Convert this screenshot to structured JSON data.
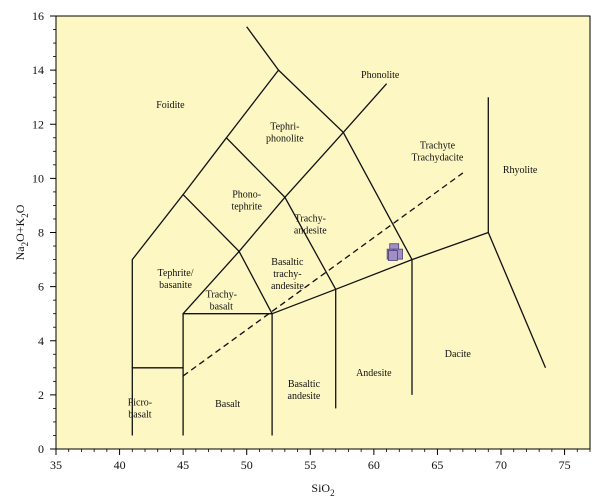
{
  "chart_data": {
    "type": "scatter",
    "title": "",
    "xlabel": "SiO",
    "xlabel_sub": "2",
    "ylabel_parts": [
      {
        "t": "Na",
        "sub": false
      },
      {
        "t": "2",
        "sub": true
      },
      {
        "t": "O+K",
        "sub": false
      },
      {
        "t": "2",
        "sub": true
      },
      {
        "t": "O",
        "sub": false
      }
    ],
    "xlim": [
      35,
      77
    ],
    "ylim": [
      0,
      16
    ],
    "xticks": [
      "35",
      "40",
      "45",
      "50",
      "55",
      "60",
      "65",
      "70",
      "75"
    ],
    "yticks": [
      "0",
      "2",
      "4",
      "6",
      "8",
      "10",
      "12",
      "14",
      "16"
    ],
    "grid": false,
    "background": "#fdf7c3",
    "line_color": "#111111",
    "marker_color": "#9f8fc4",
    "boundaries": [
      [
        [
          41,
          0.5
        ],
        [
          41,
          3
        ],
        [
          45,
          3
        ]
      ],
      [
        [
          45,
          0.5
        ],
        [
          45,
          5
        ],
        [
          52,
          5
        ],
        [
          52,
          0.5
        ]
      ],
      [
        [
          52,
          5
        ],
        [
          57,
          5.9
        ],
        [
          63,
          7
        ],
        [
          69,
          8
        ]
      ],
      [
        [
          57,
          1.5
        ],
        [
          57,
          5.9
        ]
      ],
      [
        [
          63,
          2
        ],
        [
          63,
          7
        ]
      ],
      [
        [
          69,
          8
        ],
        [
          69,
          13
        ]
      ],
      [
        [
          69,
          8
        ],
        [
          73.5,
          3
        ]
      ],
      [
        [
          45,
          5
        ],
        [
          49.4,
          7.3
        ],
        [
          53,
          9.3
        ],
        [
          57.6,
          11.7
        ],
        [
          61,
          13.5
        ]
      ],
      [
        [
          52,
          5
        ],
        [
          49.4,
          7.3
        ],
        [
          45,
          9.4
        ],
        [
          41,
          7
        ],
        [
          41,
          3
        ]
      ],
      [
        [
          57,
          5.9
        ],
        [
          53,
          9.3
        ],
        [
          48.4,
          11.5
        ],
        [
          52.5,
          14
        ],
        [
          50,
          15.6
        ]
      ],
      [
        [
          63,
          7
        ],
        [
          57.6,
          11.7
        ],
        [
          52.5,
          14
        ]
      ],
      [
        [
          45,
          9.4
        ],
        [
          48.4,
          11.5
        ]
      ]
    ],
    "dashed_line": [
      [
        45,
        2.7
      ],
      [
        67,
        10.2
      ]
    ],
    "points": [
      {
        "x": 61.6,
        "y": 7.4
      },
      {
        "x": 61.4,
        "y": 7.2
      },
      {
        "x": 61.9,
        "y": 7.2
      },
      {
        "x": 61.5,
        "y": 7.15
      }
    ],
    "fields": [
      {
        "x": 44.0,
        "y": 12.6,
        "lines": [
          "Foidite"
        ]
      },
      {
        "x": 60.5,
        "y": 13.7,
        "lines": [
          "Phonolite"
        ]
      },
      {
        "x": 53.0,
        "y": 11.8,
        "lines": [
          "Tephri-",
          "phonolite"
        ]
      },
      {
        "x": 50.0,
        "y": 9.3,
        "lines": [
          "Phono-",
          "tephrite"
        ]
      },
      {
        "x": 65.0,
        "y": 11.1,
        "lines": [
          "Trachyte",
          "Trachydacite"
        ]
      },
      {
        "x": 55.0,
        "y": 8.4,
        "lines": [
          "Trachy-",
          "andesite"
        ]
      },
      {
        "x": 71.5,
        "y": 10.2,
        "lines": [
          "Rhyolite"
        ]
      },
      {
        "x": 53.2,
        "y": 6.8,
        "lines": [
          "Basaltic",
          "trachy-",
          "andesite"
        ]
      },
      {
        "x": 44.4,
        "y": 6.4,
        "lines": [
          "Tephrite/",
          "basanite"
        ]
      },
      {
        "x": 48.0,
        "y": 5.6,
        "lines": [
          "Trachy-",
          "basalt"
        ]
      },
      {
        "x": 41.6,
        "y": 1.6,
        "lines": [
          "Picro-",
          "basalt"
        ]
      },
      {
        "x": 48.5,
        "y": 1.55,
        "lines": [
          "Basalt"
        ]
      },
      {
        "x": 54.5,
        "y": 2.3,
        "lines": [
          "Basaltic",
          "andesite"
        ]
      },
      {
        "x": 60.0,
        "y": 2.7,
        "lines": [
          "Andesite"
        ]
      },
      {
        "x": 66.6,
        "y": 3.4,
        "lines": [
          "Dacite"
        ]
      }
    ]
  }
}
